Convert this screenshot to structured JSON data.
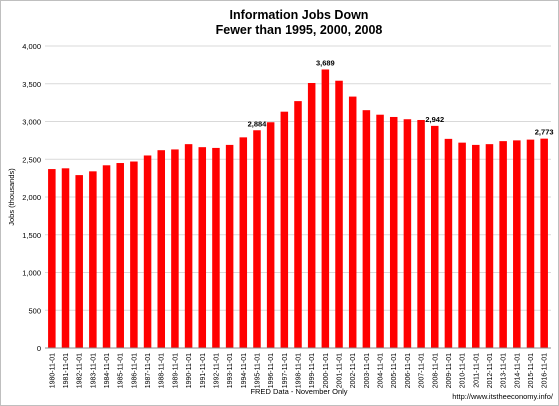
{
  "chart_data": {
    "type": "bar",
    "title": "Information Jobs Down",
    "subtitle": "Fewer than 1995, 2000, 2008",
    "ylabel": "Jobs (thousands)",
    "xlabel": "FRED Data - November Only",
    "source_note": "http://www.itstheeconomy.info/",
    "ylim": [
      0,
      4000
    ],
    "yticks": [
      0,
      500,
      1000,
      1500,
      2000,
      2500,
      3000,
      3500,
      4000
    ],
    "ytick_labels": [
      "0",
      "500",
      "1,000",
      "1,500",
      "2,000",
      "2,500",
      "3,000",
      "3,500",
      "4,000"
    ],
    "grid": true,
    "bar_color": "#ff0000",
    "categories": [
      "1980-11-01",
      "1981-11-01",
      "1982-11-01",
      "1983-11-01",
      "1984-11-01",
      "1985-11-01",
      "1986-11-01",
      "1987-11-01",
      "1988-11-01",
      "1989-11-01",
      "1990-11-01",
      "1991-11-01",
      "1992-11-01",
      "1993-11-01",
      "1994-11-01",
      "1995-11-01",
      "1996-11-01",
      "1997-11-01",
      "1998-11-01",
      "1999-11-01",
      "2000-11-01",
      "2001-11-01",
      "2002-11-01",
      "2003-11-01",
      "2004-11-01",
      "2005-11-01",
      "2006-11-01",
      "2007-11-01",
      "2008-11-01",
      "2009-11-01",
      "2010-11-01",
      "2011-11-01",
      "2012-11-01",
      "2013-11-01",
      "2014-11-01",
      "2015-11-01",
      "2016-11-01"
    ],
    "values": [
      2370,
      2380,
      2290,
      2340,
      2420,
      2450,
      2470,
      2550,
      2620,
      2630,
      2700,
      2660,
      2650,
      2690,
      2790,
      2884,
      2990,
      3130,
      3270,
      3510,
      3689,
      3540,
      3330,
      3150,
      3090,
      3060,
      3030,
      3020,
      2942,
      2770,
      2720,
      2690,
      2700,
      2740,
      2750,
      2760,
      2773
    ],
    "data_labels": [
      {
        "category": "1995-11-01",
        "text": "2,884"
      },
      {
        "category": "2000-11-01",
        "text": "3,689"
      },
      {
        "category": "2008-11-01",
        "text": "2,942"
      },
      {
        "category": "2016-11-01",
        "text": "2,773"
      }
    ]
  }
}
